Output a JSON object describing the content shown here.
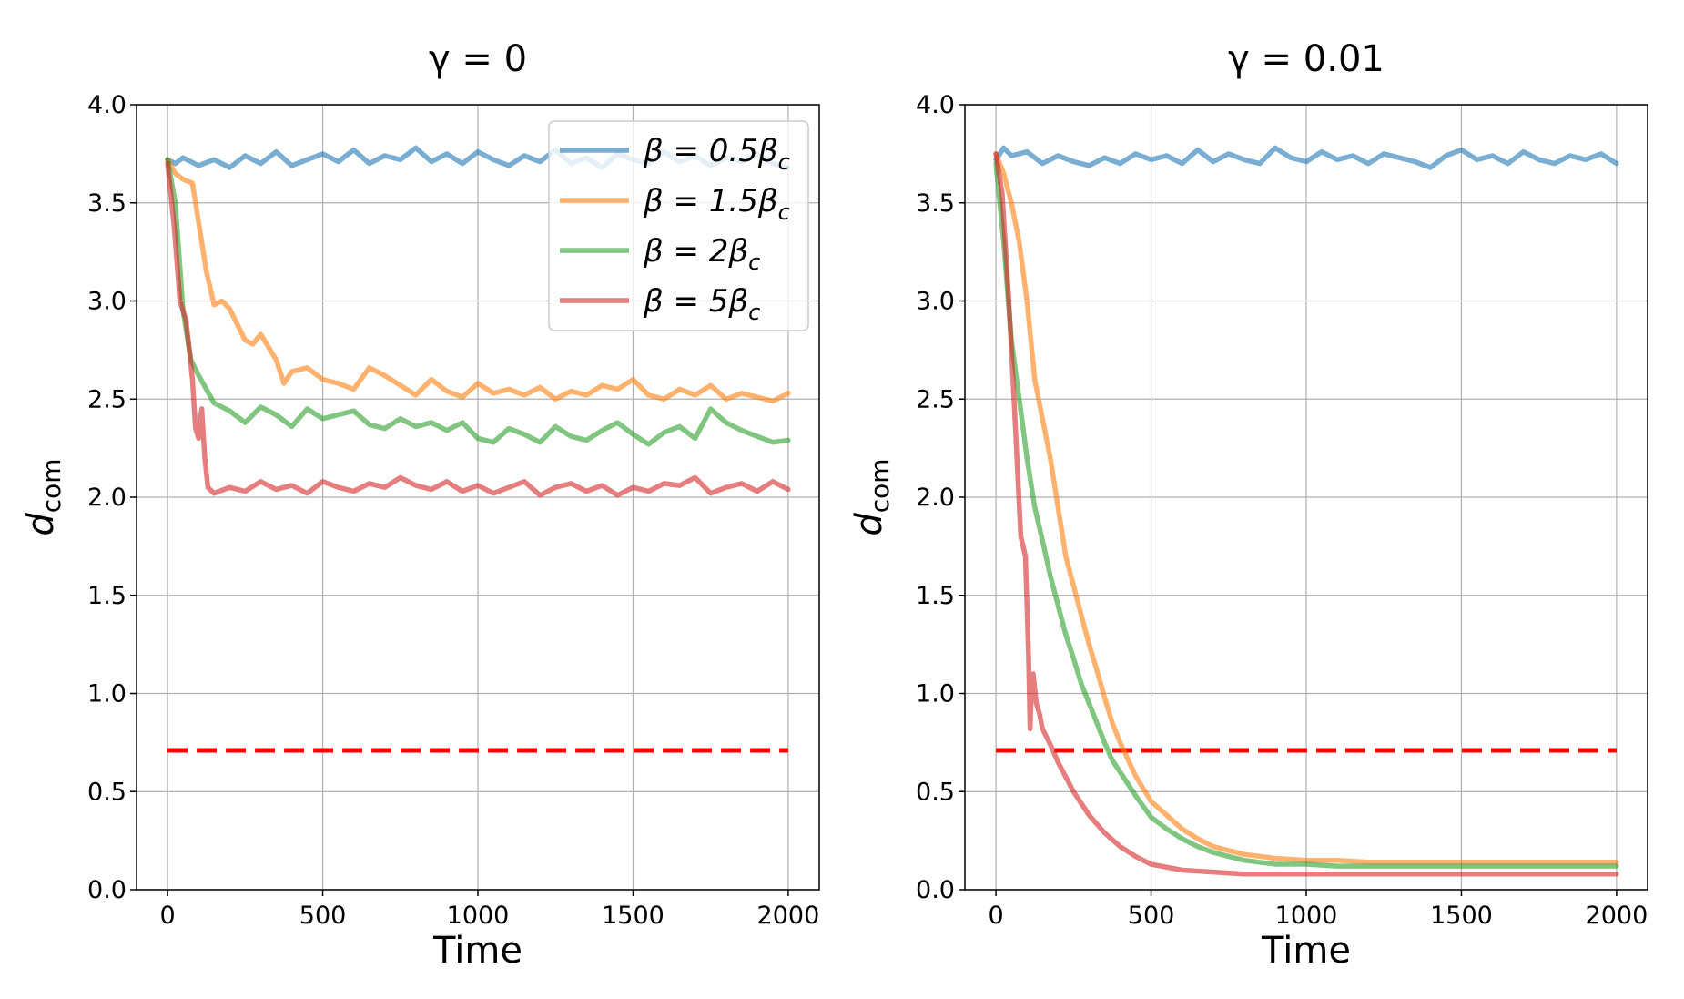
{
  "figure": {
    "xlabel": "Time",
    "ylabel_main": "d",
    "ylabel_sub": "com"
  },
  "legend": {
    "location": "upper right",
    "entries": [
      {
        "series": "beta_0.5",
        "prefix": "β = 0.5β",
        "sub": "c",
        "color": "#1f77b4"
      },
      {
        "series": "beta_1.5",
        "prefix": "β = 1.5β",
        "sub": "c",
        "color": "#ff7f0e"
      },
      {
        "series": "beta_2",
        "prefix": "β = 2β",
        "sub": "c",
        "color": "#2ca02c"
      },
      {
        "series": "beta_5",
        "prefix": "β = 5β",
        "sub": "c",
        "color": "#d62728"
      }
    ]
  },
  "chart_data": [
    {
      "type": "line",
      "title": "γ = 0",
      "xlabel": "Time",
      "ylabel": "d_com",
      "xlim": [
        -100,
        2100
      ],
      "ylim": [
        0,
        4
      ],
      "xticks": [
        0,
        500,
        1000,
        1500,
        2000
      ],
      "yticks": [
        0.0,
        0.5,
        1.0,
        1.5,
        2.0,
        2.5,
        3.0,
        3.5,
        4.0
      ],
      "grid": true,
      "legend": "upper-right",
      "threshold": {
        "y": 0.71,
        "x_range": [
          0,
          2000
        ],
        "color": "#ff0000",
        "style": "dashed"
      },
      "series": [
        {
          "name": "β = 0.5β_c",
          "color": "#1f77b4",
          "x": [
            0,
            25,
            50,
            100,
            150,
            200,
            250,
            300,
            350,
            400,
            450,
            500,
            550,
            600,
            650,
            700,
            750,
            800,
            850,
            900,
            950,
            1000,
            1050,
            1100,
            1150,
            1200,
            1250,
            1300,
            1350,
            1400,
            1450,
            1500,
            1550,
            1600,
            1650,
            1700,
            1750,
            1800,
            1850,
            1900,
            1950,
            2000
          ],
          "y": [
            3.72,
            3.7,
            3.73,
            3.69,
            3.72,
            3.68,
            3.74,
            3.7,
            3.76,
            3.69,
            3.72,
            3.75,
            3.71,
            3.77,
            3.7,
            3.74,
            3.72,
            3.78,
            3.71,
            3.75,
            3.7,
            3.76,
            3.72,
            3.69,
            3.74,
            3.71,
            3.77,
            3.7,
            3.73,
            3.68,
            3.75,
            3.72,
            3.7,
            3.76,
            3.71,
            3.74,
            3.69,
            3.73,
            3.71,
            3.75,
            3.7,
            3.68
          ]
        },
        {
          "name": "β = 1.5β_c",
          "color": "#ff7f0e",
          "x": [
            0,
            25,
            50,
            80,
            100,
            125,
            150,
            175,
            200,
            225,
            250,
            275,
            300,
            350,
            375,
            400,
            450,
            500,
            550,
            600,
            650,
            700,
            750,
            800,
            850,
            900,
            950,
            1000,
            1050,
            1100,
            1150,
            1200,
            1250,
            1300,
            1350,
            1400,
            1450,
            1500,
            1550,
            1600,
            1650,
            1700,
            1750,
            1800,
            1850,
            1900,
            1950,
            2000
          ],
          "y": [
            3.72,
            3.65,
            3.62,
            3.6,
            3.4,
            3.15,
            2.98,
            3.0,
            2.96,
            2.88,
            2.8,
            2.78,
            2.83,
            2.7,
            2.58,
            2.64,
            2.66,
            2.6,
            2.58,
            2.55,
            2.66,
            2.62,
            2.57,
            2.52,
            2.6,
            2.54,
            2.51,
            2.58,
            2.53,
            2.55,
            2.52,
            2.56,
            2.5,
            2.54,
            2.52,
            2.57,
            2.55,
            2.6,
            2.52,
            2.5,
            2.55,
            2.52,
            2.57,
            2.5,
            2.53,
            2.51,
            2.49,
            2.53
          ]
        },
        {
          "name": "β = 2β_c",
          "color": "#2ca02c",
          "x": [
            0,
            25,
            50,
            75,
            100,
            125,
            150,
            200,
            250,
            300,
            350,
            400,
            450,
            500,
            550,
            600,
            650,
            700,
            750,
            800,
            850,
            900,
            950,
            1000,
            1050,
            1100,
            1150,
            1200,
            1250,
            1300,
            1350,
            1400,
            1450,
            1500,
            1550,
            1600,
            1650,
            1700,
            1750,
            1800,
            1850,
            1900,
            1950,
            2000
          ],
          "y": [
            3.72,
            3.5,
            2.95,
            2.7,
            2.62,
            2.55,
            2.48,
            2.44,
            2.38,
            2.46,
            2.42,
            2.36,
            2.45,
            2.4,
            2.42,
            2.44,
            2.37,
            2.35,
            2.4,
            2.36,
            2.38,
            2.34,
            2.38,
            2.3,
            2.28,
            2.35,
            2.32,
            2.28,
            2.36,
            2.31,
            2.29,
            2.34,
            2.38,
            2.32,
            2.27,
            2.33,
            2.36,
            2.3,
            2.45,
            2.38,
            2.34,
            2.31,
            2.28,
            2.29
          ]
        },
        {
          "name": "β = 5β_c",
          "color": "#d62728",
          "x": [
            0,
            20,
            40,
            60,
            80,
            90,
            100,
            110,
            120,
            130,
            150,
            200,
            250,
            300,
            350,
            400,
            450,
            500,
            550,
            600,
            650,
            700,
            750,
            800,
            850,
            900,
            950,
            1000,
            1050,
            1100,
            1150,
            1200,
            1250,
            1300,
            1350,
            1400,
            1450,
            1500,
            1550,
            1600,
            1650,
            1700,
            1750,
            1800,
            1850,
            1900,
            1950,
            2000
          ],
          "y": [
            3.7,
            3.4,
            3.0,
            2.9,
            2.6,
            2.35,
            2.3,
            2.45,
            2.2,
            2.05,
            2.02,
            2.05,
            2.03,
            2.08,
            2.04,
            2.06,
            2.02,
            2.08,
            2.05,
            2.03,
            2.07,
            2.05,
            2.1,
            2.06,
            2.04,
            2.08,
            2.03,
            2.06,
            2.02,
            2.05,
            2.08,
            2.01,
            2.05,
            2.07,
            2.03,
            2.06,
            2.01,
            2.05,
            2.03,
            2.07,
            2.06,
            2.1,
            2.02,
            2.05,
            2.07,
            2.03,
            2.08,
            2.04
          ]
        }
      ]
    },
    {
      "type": "line",
      "title": "γ = 0.01",
      "xlabel": "Time",
      "ylabel": "d_com",
      "xlim": [
        -100,
        2100
      ],
      "ylim": [
        0,
        4
      ],
      "xticks": [
        0,
        500,
        1000,
        1500,
        2000
      ],
      "yticks": [
        0.0,
        0.5,
        1.0,
        1.5,
        2.0,
        2.5,
        3.0,
        3.5,
        4.0
      ],
      "grid": true,
      "threshold": {
        "y": 0.71,
        "x_range": [
          0,
          2000
        ],
        "color": "#ff0000",
        "style": "dashed"
      },
      "series": [
        {
          "name": "β = 0.5β_c",
          "color": "#1f77b4",
          "x": [
            0,
            25,
            50,
            100,
            150,
            200,
            250,
            300,
            350,
            400,
            450,
            500,
            550,
            600,
            650,
            700,
            750,
            800,
            850,
            900,
            950,
            1000,
            1050,
            1100,
            1150,
            1200,
            1250,
            1300,
            1350,
            1400,
            1450,
            1500,
            1550,
            1600,
            1650,
            1700,
            1750,
            1800,
            1850,
            1900,
            1950,
            2000
          ],
          "y": [
            3.72,
            3.78,
            3.74,
            3.76,
            3.7,
            3.74,
            3.71,
            3.69,
            3.73,
            3.7,
            3.75,
            3.72,
            3.74,
            3.7,
            3.77,
            3.71,
            3.75,
            3.72,
            3.7,
            3.78,
            3.73,
            3.71,
            3.76,
            3.72,
            3.74,
            3.7,
            3.75,
            3.73,
            3.71,
            3.68,
            3.74,
            3.77,
            3.72,
            3.74,
            3.7,
            3.76,
            3.72,
            3.7,
            3.74,
            3.72,
            3.75,
            3.7
          ]
        },
        {
          "name": "β = 1.5β_c",
          "color": "#ff7f0e",
          "x": [
            0,
            25,
            50,
            75,
            100,
            125,
            150,
            175,
            200,
            225,
            250,
            275,
            300,
            325,
            350,
            375,
            400,
            450,
            500,
            550,
            600,
            650,
            700,
            750,
            800,
            900,
            1000,
            1100,
            1200,
            1300,
            1400,
            1500,
            1600,
            1700,
            1800,
            1900,
            2000
          ],
          "y": [
            3.75,
            3.65,
            3.5,
            3.3,
            3.0,
            2.6,
            2.4,
            2.2,
            1.95,
            1.7,
            1.55,
            1.4,
            1.25,
            1.12,
            0.98,
            0.85,
            0.75,
            0.58,
            0.45,
            0.38,
            0.31,
            0.26,
            0.22,
            0.2,
            0.18,
            0.16,
            0.15,
            0.15,
            0.14,
            0.14,
            0.14,
            0.14,
            0.14,
            0.14,
            0.14,
            0.14,
            0.14
          ]
        },
        {
          "name": "β = 2β_c",
          "color": "#2ca02c",
          "x": [
            0,
            25,
            50,
            75,
            100,
            125,
            150,
            175,
            200,
            225,
            250,
            275,
            300,
            325,
            350,
            375,
            400,
            450,
            500,
            550,
            600,
            650,
            700,
            750,
            800,
            900,
            1000,
            1100,
            1200,
            1300,
            1400,
            1500,
            1600,
            1700,
            1800,
            1900,
            2000
          ],
          "y": [
            3.7,
            3.3,
            2.8,
            2.5,
            2.2,
            1.95,
            1.78,
            1.6,
            1.45,
            1.3,
            1.18,
            1.05,
            0.95,
            0.85,
            0.75,
            0.66,
            0.6,
            0.48,
            0.37,
            0.31,
            0.26,
            0.22,
            0.19,
            0.17,
            0.15,
            0.13,
            0.13,
            0.12,
            0.12,
            0.12,
            0.12,
            0.12,
            0.12,
            0.12,
            0.12,
            0.12,
            0.12
          ]
        },
        {
          "name": "β = 5β_c",
          "color": "#d62728",
          "x": [
            0,
            20,
            40,
            60,
            80,
            95,
            105,
            110,
            115,
            120,
            130,
            140,
            150,
            175,
            200,
            250,
            300,
            350,
            400,
            450,
            500,
            600,
            700,
            800,
            900,
            1000,
            1100,
            1200,
            1300,
            1400,
            1500,
            1600,
            1700,
            1800,
            1900,
            2000
          ],
          "y": [
            3.75,
            3.55,
            3.05,
            2.45,
            1.8,
            1.7,
            1.2,
            0.82,
            1.05,
            1.1,
            0.95,
            0.9,
            0.82,
            0.74,
            0.65,
            0.5,
            0.38,
            0.29,
            0.22,
            0.17,
            0.13,
            0.1,
            0.09,
            0.08,
            0.08,
            0.08,
            0.08,
            0.08,
            0.08,
            0.08,
            0.08,
            0.08,
            0.08,
            0.08,
            0.08,
            0.08
          ]
        }
      ]
    }
  ]
}
